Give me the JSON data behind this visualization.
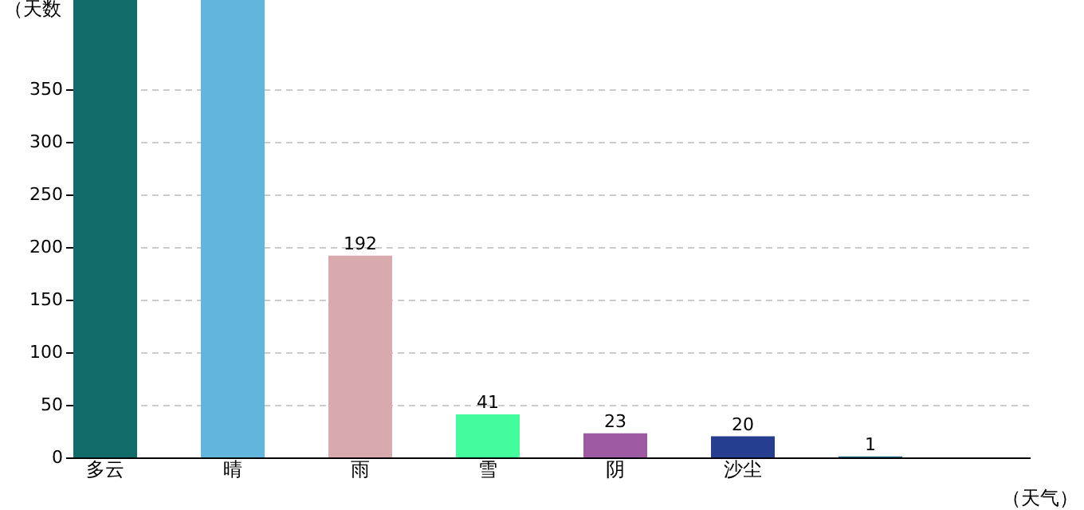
{
  "chart_data": {
    "type": "bar",
    "ylabel": "（天数",
    "xlabel": "（天气）",
    "categories": [
      "多云",
      "晴",
      "雨",
      "雪",
      "阴",
      "沙尘",
      null
    ],
    "values": [
      435,
      435,
      192,
      41,
      23,
      20,
      1
    ],
    "colors": [
      "#116b68",
      "#62b5dc",
      "#d9aaad",
      "#44fc9c",
      "#9e5aa3",
      "#263e90",
      "#1a6b8c"
    ],
    "value_labels": [
      null,
      null,
      "192",
      "41",
      "23",
      "20",
      "1"
    ],
    "ylim": [
      0,
      435
    ],
    "yticks": [
      0,
      50,
      100,
      150,
      200,
      250,
      300,
      350
    ],
    "grid": "y"
  }
}
